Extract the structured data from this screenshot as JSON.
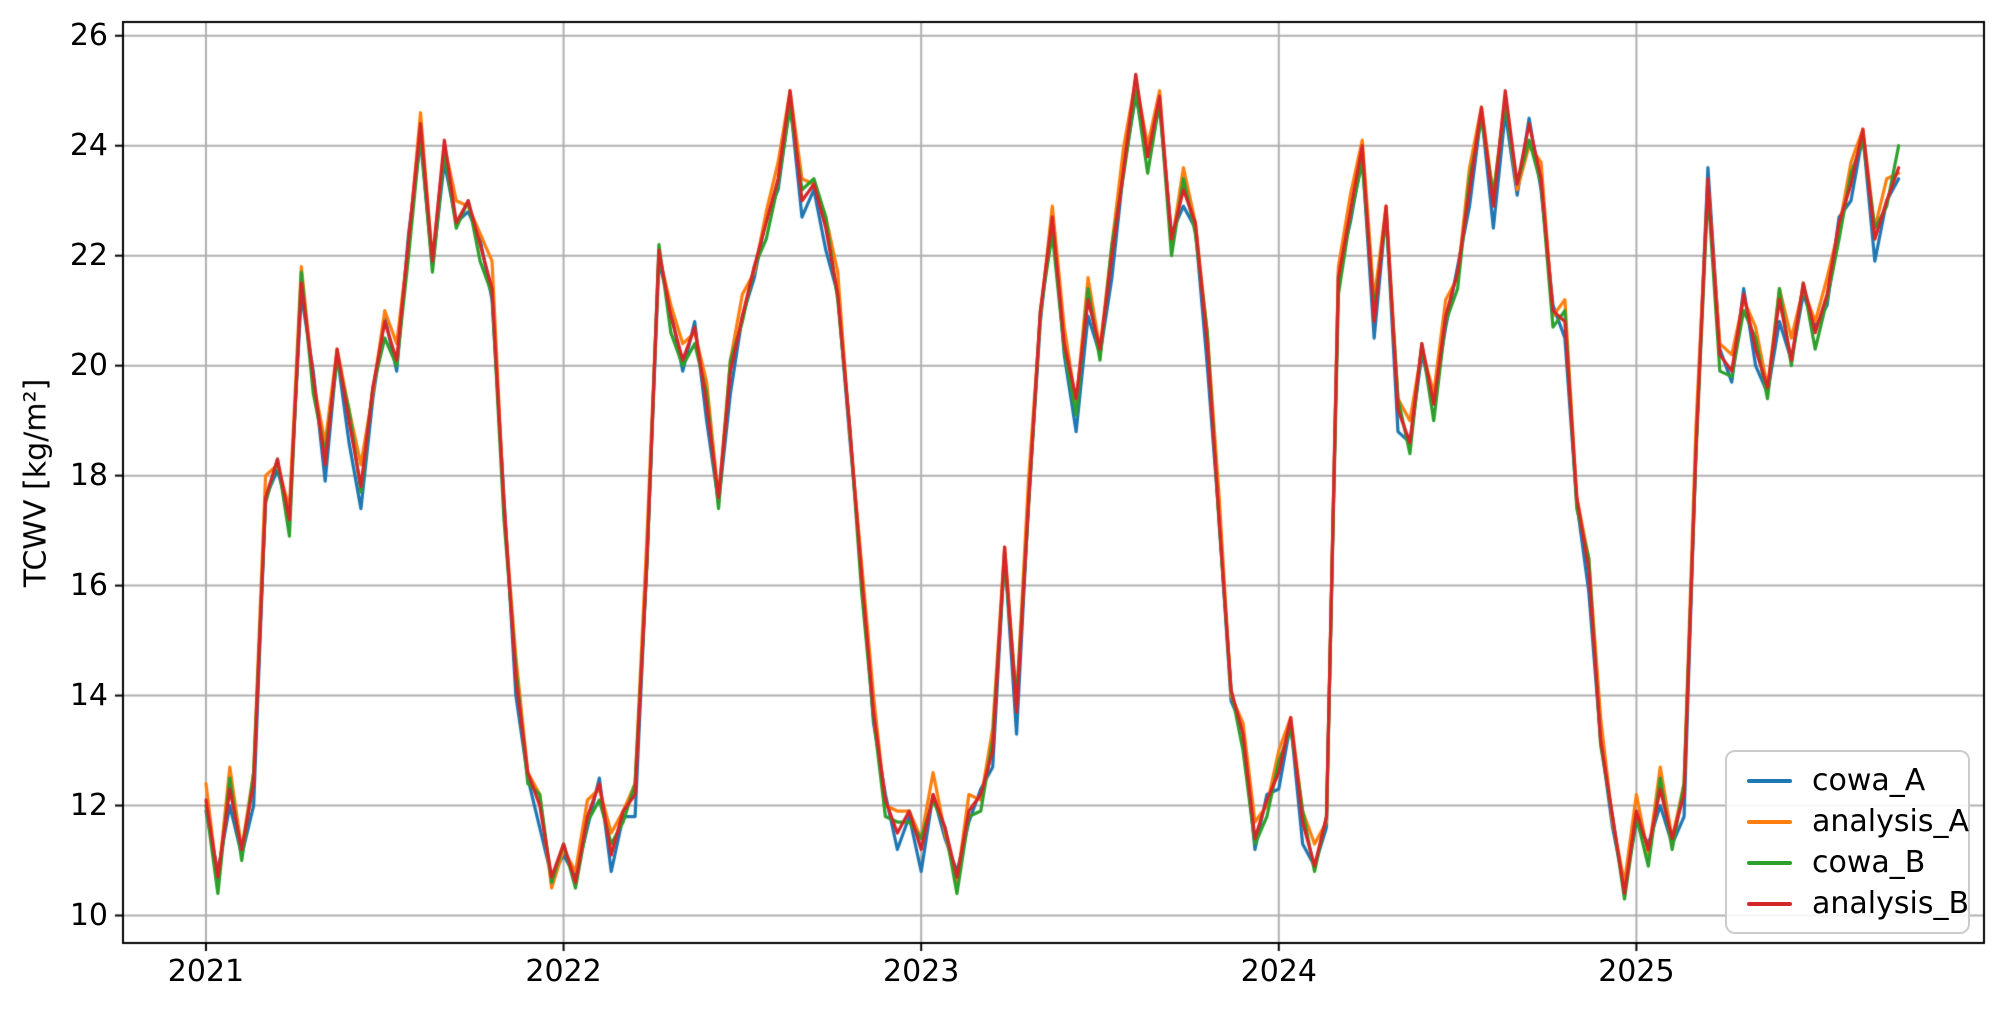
{
  "figure": {
    "background": "#ffffff"
  },
  "axes": {
    "grid_color": "#b0b0b0",
    "spine_color": "#000000",
    "tick_color": "#000000",
    "text_color": "#000000"
  },
  "chart_data": {
    "type": "line",
    "title": "",
    "xlabel": "",
    "ylabel": "TCWV [kg/m²]",
    "x_unit": "decimal_year",
    "xlim": [
      2020.768,
      2025.972
    ],
    "ylim": [
      9.5,
      26.25
    ],
    "xticks": [
      2021,
      2022,
      2023,
      2024,
      2025
    ],
    "xtick_labels": [
      "2021",
      "2022",
      "2023",
      "2024",
      "2025"
    ],
    "yticks": [
      10,
      12,
      14,
      16,
      18,
      20,
      22,
      24,
      26
    ],
    "ytick_labels": [
      "10",
      "12",
      "14",
      "16",
      "18",
      "20",
      "22",
      "24",
      "26"
    ],
    "grid": true,
    "legend_position": "lower right",
    "x_start": 2021.0,
    "x_step": 0.0333333,
    "series": [
      {
        "name": "cowa_A",
        "color": "#1f77b4",
        "values": [
          11.9,
          10.8,
          12.0,
          11.1,
          12.0,
          17.6,
          18.1,
          17.3,
          21.3,
          19.9,
          17.9,
          20.2,
          18.6,
          17.4,
          19.4,
          20.9,
          19.9,
          22.4,
          24.1,
          21.8,
          23.7,
          22.6,
          22.8,
          22.3,
          21.2,
          17.6,
          14.0,
          12.5,
          11.6,
          10.7,
          11.1,
          10.7,
          11.6,
          12.5,
          10.8,
          11.8,
          11.8,
          16.5,
          21.9,
          21.0,
          19.9,
          20.8,
          19.0,
          17.5,
          19.5,
          20.9,
          21.6,
          22.7,
          23.2,
          24.8,
          22.7,
          23.2,
          22.1,
          21.3,
          18.7,
          16.3,
          13.5,
          12.2,
          11.2,
          11.8,
          10.8,
          12.2,
          11.4,
          10.8,
          11.7,
          12.3,
          12.7,
          16.6,
          13.3,
          17.5,
          20.8,
          22.8,
          20.2,
          18.8,
          20.9,
          20.2,
          21.6,
          23.6,
          24.9,
          23.9,
          24.7,
          22.4,
          22.9,
          22.5,
          20.0,
          17.2,
          13.9,
          13.4,
          11.2,
          12.2,
          12.3,
          13.5,
          11.3,
          10.9,
          11.6,
          21.7,
          22.6,
          23.8,
          20.5,
          22.8,
          18.8,
          18.6,
          20.2,
          19.4,
          20.7,
          21.8,
          22.9,
          24.6,
          22.5,
          24.6,
          23.1,
          24.5,
          23.2,
          21.1,
          20.5,
          17.5,
          15.9,
          13.2,
          11.6,
          10.5,
          11.7,
          11.3,
          12.0,
          11.3,
          11.8,
          18.5,
          23.6,
          20.3,
          19.7,
          21.4,
          20.0,
          19.5,
          20.8,
          20.1,
          21.3,
          20.7,
          21.1,
          22.7,
          23.0,
          24.2,
          21.9,
          23.0,
          23.4
        ]
      },
      {
        "name": "analysis_A",
        "color": "#ff7f0e",
        "values": [
          12.4,
          10.6,
          12.7,
          11.2,
          12.6,
          18.0,
          18.2,
          17.4,
          21.8,
          19.7,
          18.6,
          20.3,
          19.2,
          18.2,
          19.5,
          21.0,
          20.4,
          22.2,
          24.6,
          21.9,
          24.0,
          23.0,
          22.9,
          22.4,
          21.9,
          17.4,
          14.7,
          12.6,
          12.2,
          10.5,
          11.2,
          10.8,
          12.1,
          12.3,
          11.5,
          11.9,
          12.4,
          16.9,
          22.0,
          21.1,
          20.4,
          20.6,
          19.7,
          17.6,
          20.1,
          21.3,
          21.7,
          22.8,
          23.7,
          25.0,
          23.4,
          23.3,
          22.7,
          21.7,
          18.8,
          16.4,
          14.0,
          12.0,
          11.9,
          11.9,
          11.4,
          12.6,
          11.5,
          10.6,
          12.2,
          12.1,
          13.4,
          16.7,
          13.9,
          17.9,
          20.9,
          22.9,
          20.7,
          19.3,
          21.6,
          20.3,
          22.2,
          24.0,
          25.2,
          24.0,
          25.0,
          22.2,
          23.6,
          22.6,
          20.6,
          17.6,
          14.0,
          13.5,
          11.7,
          12.0,
          13.0,
          13.6,
          11.9,
          11.3,
          11.7,
          21.8,
          23.1,
          24.1,
          21.2,
          22.9,
          19.4,
          19.0,
          20.3,
          19.5,
          21.2,
          21.6,
          23.6,
          24.7,
          23.1,
          24.9,
          23.2,
          24.0,
          23.7,
          20.9,
          21.2,
          17.6,
          16.5,
          13.6,
          11.7,
          10.6,
          12.2,
          11.1,
          12.7,
          11.4,
          12.4,
          18.9,
          23.3,
          20.4,
          20.2,
          21.2,
          20.7,
          19.6,
          21.4,
          20.5,
          21.4,
          20.8,
          21.6,
          22.5,
          23.7,
          24.3,
          22.5,
          23.4,
          23.5
        ]
      },
      {
        "name": "cowa_B",
        "color": "#2ca02c",
        "values": [
          12.0,
          10.4,
          12.5,
          11.0,
          12.6,
          17.5,
          18.3,
          16.9,
          21.7,
          19.5,
          18.4,
          20.1,
          19.2,
          17.7,
          19.6,
          20.5,
          20.0,
          22.0,
          24.2,
          21.7,
          23.9,
          22.5,
          23.0,
          21.9,
          21.3,
          17.2,
          14.5,
          12.4,
          12.2,
          10.6,
          11.3,
          10.5,
          11.7,
          12.1,
          11.3,
          11.7,
          12.4,
          16.4,
          22.2,
          20.6,
          20.0,
          20.4,
          19.5,
          17.4,
          20.1,
          20.8,
          21.8,
          22.3,
          23.3,
          24.7,
          23.2,
          23.4,
          22.7,
          21.2,
          18.9,
          15.9,
          13.6,
          11.8,
          11.7,
          11.7,
          11.4,
          12.1,
          11.6,
          10.4,
          11.8,
          11.9,
          13.2,
          16.5,
          13.9,
          17.4,
          21.0,
          22.4,
          20.3,
          19.1,
          21.4,
          20.1,
          22.2,
          23.5,
          25.0,
          23.5,
          24.8,
          22.0,
          23.4,
          22.4,
          20.6,
          17.1,
          14.1,
          13.0,
          11.3,
          11.8,
          12.8,
          13.4,
          11.9,
          10.8,
          11.8,
          21.3,
          22.7,
          23.7,
          21.0,
          22.7,
          19.4,
          18.4,
          20.4,
          19.0,
          20.8,
          21.4,
          23.4,
          24.5,
          23.1,
          24.8,
          23.3,
          24.1,
          23.3,
          20.7,
          21.0,
          17.4,
          16.5,
          13.1,
          11.8,
          10.3,
          11.8,
          10.9,
          12.5,
          11.2,
          12.4,
          18.4,
          23.2,
          19.9,
          19.8,
          21.0,
          20.5,
          19.4,
          21.4,
          20.0,
          21.5,
          20.3,
          21.2,
          22.3,
          23.5,
          24.1,
          22.5,
          22.9,
          24.0
        ]
      },
      {
        "name": "analysis_B",
        "color": "#d62728",
        "values": [
          12.1,
          10.7,
          12.3,
          11.2,
          12.4,
          17.6,
          18.3,
          17.2,
          21.5,
          19.8,
          18.2,
          20.3,
          19.0,
          17.8,
          19.6,
          20.8,
          20.1,
          22.3,
          24.4,
          21.9,
          24.1,
          22.6,
          23.0,
          22.2,
          21.4,
          17.5,
          14.3,
          12.6,
          12.0,
          10.7,
          11.3,
          10.6,
          11.8,
          12.4,
          11.1,
          11.9,
          12.2,
          16.5,
          22.1,
          20.9,
          20.1,
          20.7,
          19.3,
          17.6,
          19.9,
          20.9,
          21.8,
          22.6,
          23.4,
          25.0,
          23.0,
          23.3,
          22.5,
          21.3,
          18.9,
          16.2,
          13.7,
          12.1,
          11.5,
          11.9,
          11.2,
          12.2,
          11.6,
          10.7,
          11.9,
          12.2,
          13.0,
          16.7,
          13.7,
          17.5,
          21.0,
          22.7,
          20.4,
          19.4,
          21.2,
          20.3,
          22.0,
          23.6,
          25.3,
          23.8,
          24.9,
          22.3,
          23.2,
          22.6,
          20.4,
          17.2,
          14.1,
          13.3,
          11.4,
          12.1,
          12.6,
          13.6,
          11.7,
          10.9,
          11.8,
          21.6,
          22.8,
          24.0,
          20.8,
          22.9,
          19.2,
          18.6,
          20.4,
          19.3,
          20.9,
          21.7,
          23.2,
          24.7,
          22.9,
          25.0,
          23.3,
          24.4,
          23.4,
          21.0,
          20.8,
          17.6,
          16.3,
          13.2,
          11.8,
          10.4,
          11.9,
          11.2,
          12.3,
          11.4,
          12.2,
          18.5,
          23.4,
          20.2,
          19.9,
          21.3,
          20.3,
          19.6,
          21.2,
          20.1,
          21.5,
          20.6,
          21.3,
          22.6,
          23.3,
          24.3,
          22.3,
          23.0,
          23.6
        ]
      }
    ]
  }
}
